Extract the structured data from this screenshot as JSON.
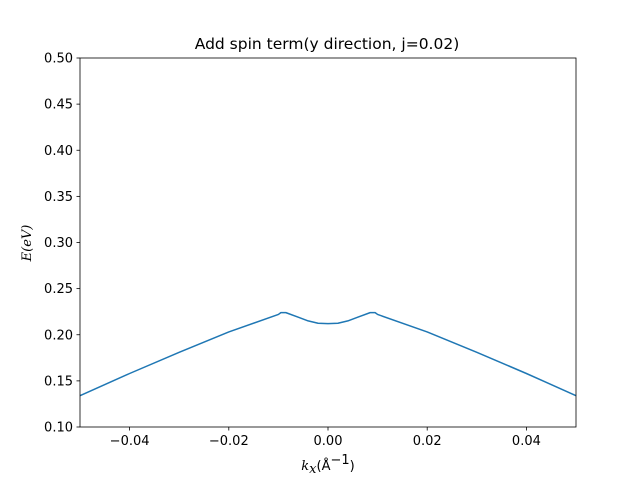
{
  "chart_data": {
    "type": "line",
    "title": "Add spin term(y direction, j=0.02)",
    "xlabel_var": "k",
    "xlabel_sub": "x",
    "xlabel_unit_open": "(Å",
    "xlabel_unit_sup": "−1",
    "xlabel_unit_close": ")",
    "ylabel": "E(eV)",
    "xlim": [
      -0.05,
      0.05
    ],
    "ylim": [
      0.1,
      0.5
    ],
    "xticks": [
      -0.04,
      -0.02,
      0.0,
      0.02,
      0.04
    ],
    "xtick_labels": [
      "−0.04",
      "−0.02",
      "0.00",
      "0.02",
      "0.04"
    ],
    "yticks": [
      0.1,
      0.15,
      0.2,
      0.25,
      0.3,
      0.35,
      0.4,
      0.45,
      0.5
    ],
    "ytick_labels": [
      "0.10",
      "0.15",
      "0.20",
      "0.25",
      "0.30",
      "0.35",
      "0.40",
      "0.45",
      "0.50"
    ],
    "grid": false,
    "series": [
      {
        "color": "#1f77b4",
        "x": [
          -0.05,
          -0.04,
          -0.03,
          -0.02,
          -0.01,
          -0.0095,
          -0.0085,
          -0.006,
          -0.004,
          -0.002,
          0.0,
          0.002,
          0.004,
          0.006,
          0.0085,
          0.0095,
          0.01,
          0.02,
          0.03,
          0.04,
          0.05
        ],
        "y": [
          0.134,
          0.158,
          0.181,
          0.203,
          0.222,
          0.224,
          0.224,
          0.219,
          0.215,
          0.2125,
          0.212,
          0.2125,
          0.215,
          0.219,
          0.224,
          0.224,
          0.222,
          0.203,
          0.181,
          0.158,
          0.134
        ]
      }
    ]
  }
}
